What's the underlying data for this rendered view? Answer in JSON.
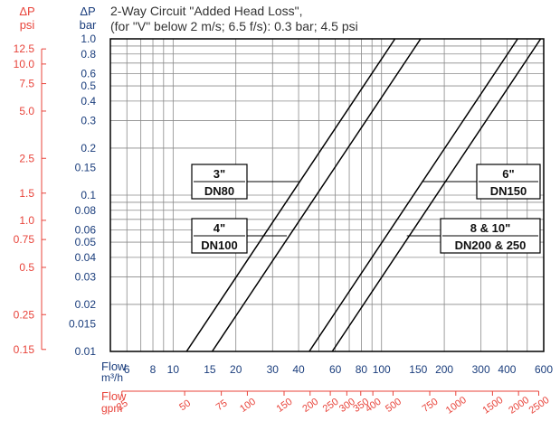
{
  "chart_data": {
    "type": "line",
    "title": "2-Way Circuit \"Added Head Loss\",",
    "subtitle": "(for \"V\" below 2 m/s; 6.5 f/s): 0.3 bar; 4.5 psi",
    "x_scale": "log",
    "y_scale": "log",
    "xlim": [
      5,
      600
    ],
    "ylim": [
      0.01,
      1.0
    ],
    "grid": true,
    "x_axis_primary": {
      "label_line1": "Flow",
      "label_line2": "m³/h",
      "ticks": [
        6,
        8,
        10,
        15,
        20,
        30,
        40,
        60,
        80,
        100,
        150,
        200,
        300,
        400,
        600
      ],
      "tick_labels": [
        "6",
        "8",
        "10",
        "15",
        "20",
        "30",
        "40",
        "60",
        "80",
        "100",
        "150",
        "200",
        "300",
        "400",
        "600"
      ]
    },
    "x_axis_secondary": {
      "label_line1": "Flow",
      "label_line2": "gpm",
      "color": "#e8433a",
      "tick_labels": [
        "25",
        "50",
        "75",
        "100",
        "150",
        "200",
        "250",
        "300",
        "350",
        "400",
        "500",
        "750",
        "1000",
        "1500",
        "2000",
        "2500"
      ],
      "ticks_m3h": [
        5.68,
        11.36,
        17.03,
        22.71,
        34.07,
        45.42,
        56.78,
        68.14,
        79.49,
        90.85,
        113.56,
        170.34,
        227.12,
        340.69,
        454.25,
        567.81
      ]
    },
    "y_axis_primary": {
      "label_line1": "ΔP",
      "label_line2": "bar",
      "ticks": [
        1.0,
        0.8,
        0.6,
        0.5,
        0.4,
        0.3,
        0.2,
        0.15,
        0.1,
        0.08,
        0.06,
        0.05,
        0.04,
        0.03,
        0.02,
        0.015,
        0.01
      ],
      "tick_labels": [
        "1.0",
        "0.8",
        "0.6",
        "0.5",
        "0.4",
        "0.3",
        "0.2",
        "0.15",
        "0.1",
        "0.08",
        "0.06",
        "0.05",
        "0.04",
        "0.03",
        "0.02",
        "0.015",
        "0.01"
      ]
    },
    "y_axis_secondary": {
      "label_line1": "ΔP",
      "label_line2": "psi",
      "color": "#e8433a",
      "tick_labels": [
        "12.5",
        "10.0",
        "7.5",
        "5.0",
        "2.5",
        "1.5",
        "1.0",
        "0.75",
        "0.5",
        "0.25",
        "0.15"
      ],
      "ticks_bar": [
        0.862,
        0.69,
        0.517,
        0.345,
        0.172,
        0.103,
        0.069,
        0.052,
        0.0345,
        0.0172,
        0.0103
      ]
    },
    "series": [
      {
        "name": "3\"",
        "points": [
          [
            11.6,
            0.01
          ],
          [
            116,
            1.0
          ]
        ]
      },
      {
        "name": "4\"",
        "points": [
          [
            15.4,
            0.01
          ],
          [
            154,
            1.0
          ]
        ]
      },
      {
        "name": "6\"",
        "points": [
          [
            45,
            0.01
          ],
          [
            450,
            1.0
          ]
        ]
      },
      {
        "name": "8 & 10\"",
        "points": [
          [
            58,
            0.01
          ],
          [
            580,
            1.0
          ]
        ]
      }
    ],
    "callouts": [
      {
        "line1": "3\"",
        "line2": "DN80",
        "series": 0,
        "at_y": 0.12
      },
      {
        "line1": "4\"",
        "line2": "DN100",
        "series": 1,
        "at_y": 0.052
      },
      {
        "line1": "6\"",
        "line2": "DN150",
        "series": 2,
        "at_y": 0.12
      },
      {
        "line1": "8 & 10\"",
        "line2": "DN200 & 250",
        "series": 3,
        "at_y": 0.052
      }
    ]
  },
  "colors": {
    "grid": "#8a8a8a",
    "line": "#000000",
    "accent_red": "#e8433a",
    "axis_text": "#1a3d7c",
    "ink": "#333333"
  }
}
